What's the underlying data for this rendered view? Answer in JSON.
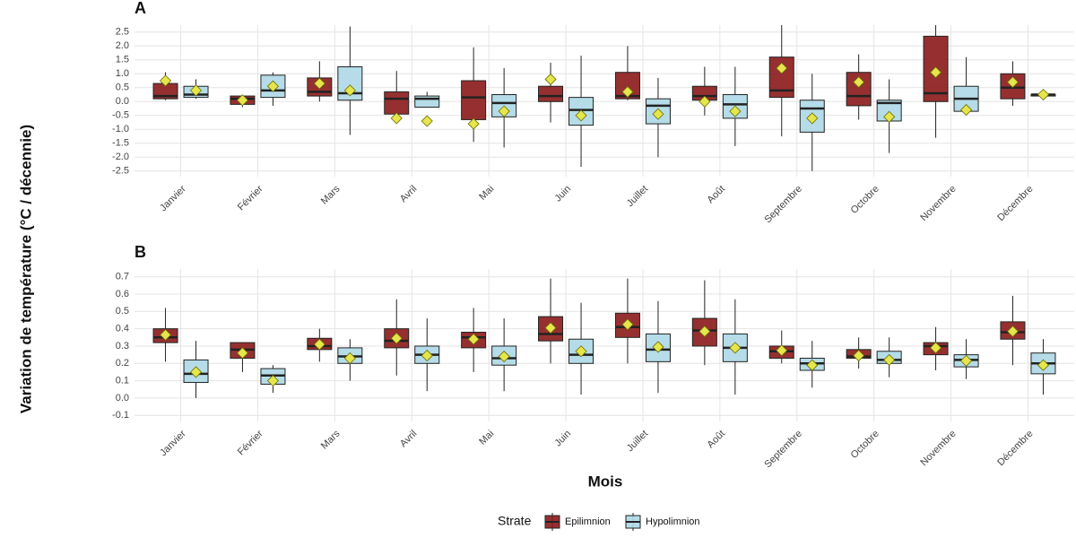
{
  "y_label": "Variation de température (°C / décennie)",
  "x_label": "Mois",
  "legend_title": "Strate",
  "chart_data": [
    {
      "type": "box",
      "title": "A",
      "categories": [
        "Janvier",
        "Février",
        "Mars",
        "Avril",
        "Mai",
        "Juin",
        "Juillet",
        "Août",
        "Septembre",
        "Octobre",
        "Novembre",
        "Décembre"
      ],
      "ylim": [
        -2.7,
        2.75
      ],
      "yticks": [
        {
          "value": -2.5,
          "label": "-2.5"
        },
        {
          "value": -2,
          "label": "-2.0"
        },
        {
          "value": -1.5,
          "label": "-1.5"
        },
        {
          "value": -1,
          "label": "-1.0"
        },
        {
          "value": -0.5,
          "label": "-0.5"
        },
        {
          "value": 0,
          "label": "0.0"
        },
        {
          "value": 0.5,
          "label": "0.5"
        },
        {
          "value": 1,
          "label": "1.0"
        },
        {
          "value": 1.5,
          "label": "1.5"
        },
        {
          "value": 2,
          "label": "2.0"
        },
        {
          "value": 2.5,
          "label": "2.5"
        }
      ],
      "grid": true,
      "mean_color": "#e5e54c",
      "series": [
        {
          "name": "Epilimnion",
          "color": "#8b1a1a",
          "low": [
            0.05,
            -0.2,
            0.0,
            -0.55,
            -1.45,
            -0.75,
            0.05,
            -0.5,
            -1.25,
            -0.65,
            -1.3,
            -0.15
          ],
          "q1": [
            0.1,
            -0.1,
            0.2,
            -0.45,
            -0.65,
            0.0,
            0.1,
            0.05,
            0.15,
            -0.15,
            0.0,
            0.1
          ],
          "median": [
            0.2,
            0.1,
            0.35,
            0.1,
            0.15,
            0.2,
            0.2,
            0.2,
            0.4,
            0.2,
            0.3,
            0.5
          ],
          "q3": [
            0.65,
            0.2,
            0.85,
            0.35,
            0.75,
            0.55,
            1.05,
            0.55,
            1.6,
            1.05,
            2.35,
            1.0
          ],
          "high": [
            1.05,
            0.2,
            1.45,
            1.1,
            1.95,
            1.4,
            2.0,
            1.25,
            2.75,
            1.7,
            2.75,
            1.45
          ],
          "mean": [
            0.75,
            0.05,
            0.65,
            -0.6,
            -0.8,
            0.8,
            0.35,
            0.0,
            1.2,
            0.7,
            1.05,
            0.7
          ]
        },
        {
          "name": "Hypolimnion",
          "color": "#add8e6",
          "low": [
            0.1,
            -0.15,
            -1.2,
            -0.2,
            -1.65,
            -2.35,
            -2.0,
            -1.6,
            -2.5,
            -1.85,
            -0.35,
            0.2
          ],
          "q1": [
            0.15,
            0.15,
            0.05,
            -0.2,
            -0.55,
            -0.85,
            -0.8,
            -0.6,
            -1.1,
            -0.7,
            -0.35,
            0.2
          ],
          "median": [
            0.25,
            0.4,
            0.3,
            0.1,
            -0.05,
            -0.3,
            -0.15,
            -0.1,
            -0.25,
            -0.05,
            0.1,
            0.25
          ],
          "q3": [
            0.55,
            0.95,
            1.25,
            0.2,
            0.25,
            0.15,
            0.1,
            0.25,
            0.05,
            0.05,
            0.55,
            0.25
          ],
          "high": [
            0.8,
            1.05,
            2.7,
            0.35,
            1.2,
            1.65,
            0.85,
            1.25,
            1.0,
            0.8,
            1.6,
            0.3
          ],
          "mean": [
            0.4,
            0.55,
            0.4,
            -0.7,
            -0.35,
            -0.5,
            -0.45,
            -0.35,
            -0.6,
            -0.55,
            -0.3,
            0.25
          ]
        }
      ]
    },
    {
      "type": "box",
      "title": "B",
      "categories": [
        "Janvier",
        "Février",
        "Mars",
        "Avril",
        "Mai",
        "Juin",
        "Juillet",
        "Août",
        "Septembre",
        "Octobre",
        "Novembre",
        "Décembre"
      ],
      "ylim": [
        -0.135,
        0.745
      ],
      "yticks": [
        {
          "value": -0.1,
          "label": "-0.1"
        },
        {
          "value": 0,
          "label": "0.0"
        },
        0.1,
        0.2,
        0.3,
        0.4,
        0.5,
        0.6,
        0.7
      ],
      "grid": true,
      "mean_color": "#e5e54c",
      "series": [
        {
          "name": "Epilimnion",
          "color": "#8b1a1a",
          "low": [
            0.21,
            0.15,
            0.21,
            0.13,
            0.15,
            0.2,
            0.2,
            0.19,
            0.2,
            0.17,
            0.16,
            0.19
          ],
          "q1": [
            0.32,
            0.23,
            0.28,
            0.29,
            0.29,
            0.33,
            0.35,
            0.3,
            0.23,
            0.23,
            0.25,
            0.34
          ],
          "median": [
            0.35,
            0.28,
            0.3,
            0.33,
            0.35,
            0.37,
            0.41,
            0.39,
            0.27,
            0.24,
            0.3,
            0.38
          ],
          "q3": [
            0.4,
            0.32,
            0.345,
            0.4,
            0.38,
            0.47,
            0.49,
            0.46,
            0.3,
            0.28,
            0.32,
            0.44
          ],
          "high": [
            0.52,
            0.32,
            0.4,
            0.57,
            0.52,
            0.69,
            0.69,
            0.68,
            0.39,
            0.35,
            0.41,
            0.59
          ],
          "mean": [
            0.365,
            0.26,
            0.31,
            0.345,
            0.34,
            0.405,
            0.425,
            0.385,
            0.275,
            0.245,
            0.29,
            0.385
          ]
        },
        {
          "name": "Hypolimnion",
          "color": "#add8e6",
          "low": [
            0.0,
            0.03,
            0.1,
            0.04,
            0.04,
            0.02,
            0.03,
            0.02,
            0.06,
            0.12,
            0.11,
            0.02
          ],
          "q1": [
            0.09,
            0.08,
            0.2,
            0.2,
            0.19,
            0.2,
            0.21,
            0.21,
            0.16,
            0.2,
            0.18,
            0.14
          ],
          "median": [
            0.14,
            0.13,
            0.24,
            0.25,
            0.23,
            0.25,
            0.28,
            0.29,
            0.2,
            0.22,
            0.22,
            0.2
          ],
          "q3": [
            0.22,
            0.17,
            0.29,
            0.3,
            0.3,
            0.34,
            0.37,
            0.37,
            0.23,
            0.27,
            0.25,
            0.26
          ],
          "high": [
            0.33,
            0.19,
            0.34,
            0.46,
            0.46,
            0.55,
            0.56,
            0.57,
            0.33,
            0.35,
            0.34,
            0.34
          ],
          "mean": [
            0.15,
            0.1,
            0.23,
            0.245,
            0.24,
            0.27,
            0.295,
            0.29,
            0.19,
            0.22,
            0.215,
            0.19
          ]
        }
      ]
    }
  ]
}
